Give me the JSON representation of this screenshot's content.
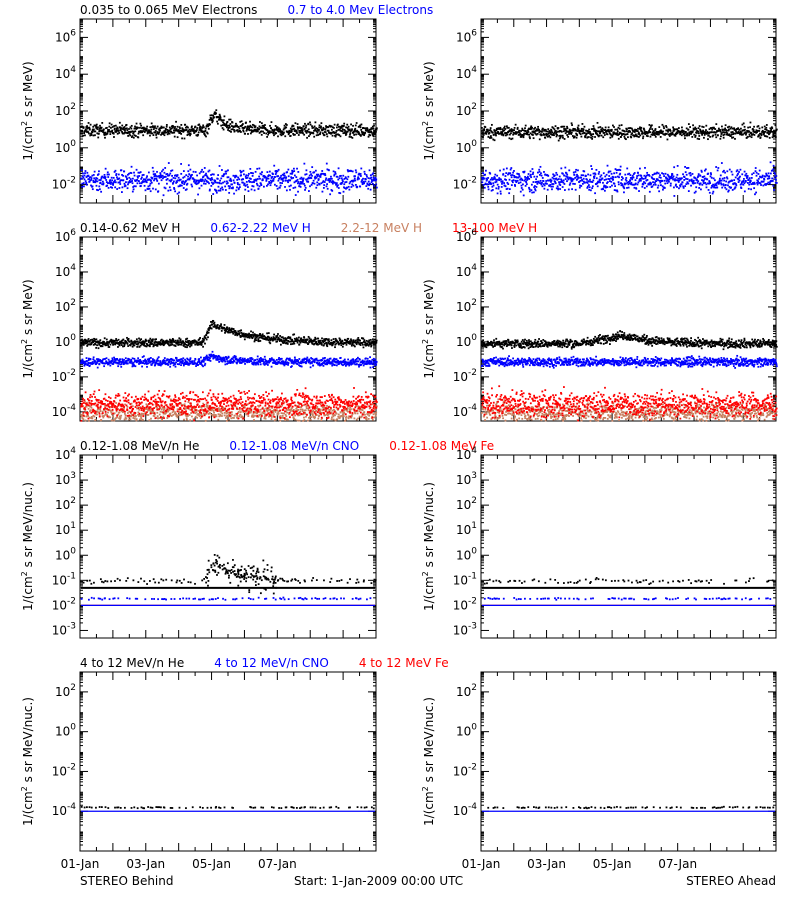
{
  "footer": {
    "left": "STEREO Behind",
    "center": "Start:  1-Jan-2009 00:00 UTC",
    "right": "STEREO Ahead"
  },
  "colors": {
    "black": "#000000",
    "blue": "#0000ff",
    "red": "#ff0000",
    "tan": "#c88060"
  },
  "chart_data": [
    {
      "type": "scatter",
      "panel": "electrons",
      "legend": [
        {
          "text": "0.035 to 0.065 MeV Electrons",
          "color": "#000000"
        },
        {
          "text": "0.7 to 4.0 Mev Electrons",
          "color": "#0000ff"
        }
      ],
      "ylabel": "1/(cm2 s sr MeV)",
      "yscale": "log",
      "ylim": [
        0.001,
        10000000
      ],
      "yticks": [
        {
          "exp": "-2"
        },
        {
          "exp": "0"
        },
        {
          "exp": "2"
        },
        {
          "exp": "4"
        },
        {
          "exp": "6"
        }
      ],
      "x_range_days": [
        0,
        9
      ],
      "x_ticks": [
        "01-Jan",
        "03-Jan",
        "05-Jan",
        "07-Jan"
      ],
      "behind": {
        "series": [
          {
            "color": "#000000",
            "base": 10,
            "spread": 0.5,
            "event": {
              "start": 3.8,
              "peak": 4.05,
              "decay": 0.35,
              "peak_value": 80
            }
          },
          {
            "color": "#0000ff",
            "base": 0.02,
            "spread": 0.9
          }
        ]
      },
      "ahead": {
        "series": [
          {
            "color": "#000000",
            "base": 8,
            "spread": 0.5
          },
          {
            "color": "#0000ff",
            "base": 0.02,
            "spread": 0.9
          }
        ]
      }
    },
    {
      "type": "scatter",
      "panel": "protons",
      "legend": [
        {
          "text": "0.14-0.62 MeV H",
          "color": "#000000"
        },
        {
          "text": "0.62-2.22 MeV H",
          "color": "#0000ff"
        },
        {
          "text": "2.2-12 MeV H",
          "color": "#c88060"
        },
        {
          "text": "13-100 MeV H",
          "color": "#ff0000"
        }
      ],
      "ylabel": "1/(cm2 s sr MeV)",
      "yscale": "log",
      "ylim": [
        3e-05,
        1000000
      ],
      "yticks": [
        {
          "exp": "-4"
        },
        {
          "exp": "-2"
        },
        {
          "exp": "0"
        },
        {
          "exp": "2"
        },
        {
          "exp": "4"
        },
        {
          "exp": "6"
        }
      ],
      "x_range_days": [
        0,
        9
      ],
      "x_ticks": [
        "01-Jan",
        "03-Jan",
        "05-Jan",
        "07-Jan"
      ],
      "behind": {
        "series": [
          {
            "color": "#000000",
            "base": 1,
            "spread": 0.35,
            "event": {
              "start": 3.7,
              "peak": 4.0,
              "decay": 1.2,
              "peak_value": 12
            }
          },
          {
            "color": "#0000ff",
            "base": 0.08,
            "spread": 0.35,
            "event": {
              "start": 3.7,
              "peak": 4.0,
              "decay": 0.6,
              "peak_value": 0.17
            }
          },
          {
            "color": "#c88060",
            "base": 0.0001,
            "spread": 0.8
          },
          {
            "color": "#ff0000",
            "base": 0.0003,
            "spread": 1.0
          }
        ]
      },
      "ahead": {
        "series": [
          {
            "color": "#000000",
            "base": 0.9,
            "spread": 0.35,
            "event": {
              "start": 3.0,
              "peak": 4.3,
              "decay": 0.8,
              "peak_value": 2.8
            }
          },
          {
            "color": "#0000ff",
            "base": 0.08,
            "spread": 0.35
          },
          {
            "color": "#c88060",
            "base": 0.0001,
            "spread": 0.8
          },
          {
            "color": "#ff0000",
            "base": 0.0003,
            "spread": 1.0
          }
        ]
      }
    },
    {
      "type": "scatter",
      "panel": "heavy-ions-low",
      "legend": [
        {
          "text": "0.12-1.08 MeV/n He",
          "color": "#000000"
        },
        {
          "text": "0.12-1.08 MeV/n CNO",
          "color": "#0000ff"
        },
        {
          "text": "0.12-1.08 MeV Fe",
          "color": "#ff0000"
        }
      ],
      "ylabel": "1/(cm2 s sr MeV/nuc.)",
      "yscale": "log",
      "ylim": [
        0.0005,
        10000
      ],
      "yticks": [
        {
          "exp": "-3"
        },
        {
          "exp": "-2"
        },
        {
          "exp": "-1"
        },
        {
          "exp": "0"
        },
        {
          "exp": "1"
        },
        {
          "exp": "2"
        },
        {
          "exp": "3"
        },
        {
          "exp": "4"
        }
      ],
      "x_range_days": [
        0,
        9
      ],
      "x_ticks": [
        "01-Jan",
        "03-Jan",
        "05-Jan",
        "07-Jan"
      ],
      "behind": {
        "lines": [
          {
            "color": "#000000",
            "value": 0.05
          },
          {
            "color": "#ff0000",
            "value": 0.01
          },
          {
            "color": "#0000ff",
            "value": 0.01
          }
        ],
        "series": [
          {
            "color": "#000000",
            "base": 0.1,
            "spread": 0.15,
            "sparse": true,
            "event": {
              "start": 3.8,
              "peak": 4.0,
              "decay": 0.8,
              "peak_value": 0.6
            }
          },
          {
            "color": "#0000ff",
            "base": 0.02,
            "spread": 0.05,
            "sparse": true
          }
        ]
      },
      "ahead": {
        "lines": [
          {
            "color": "#000000",
            "value": 0.05
          },
          {
            "color": "#ff0000",
            "value": 0.01
          },
          {
            "color": "#0000ff",
            "value": 0.01
          }
        ],
        "series": [
          {
            "color": "#000000",
            "base": 0.1,
            "spread": 0.15,
            "sparse": true
          },
          {
            "color": "#0000ff",
            "base": 0.02,
            "spread": 0.05,
            "sparse": true
          }
        ]
      }
    },
    {
      "type": "scatter",
      "panel": "heavy-ions-high",
      "legend": [
        {
          "text": "4 to 12 MeV/n He",
          "color": "#000000"
        },
        {
          "text": "4 to 12 MeV/n CNO",
          "color": "#0000ff"
        },
        {
          "text": "4 to 12 MeV Fe",
          "color": "#ff0000"
        }
      ],
      "ylabel": "1/(cm2 s sr MeV/nuc.)",
      "yscale": "log",
      "ylim": [
        1e-06,
        1000
      ],
      "yticks": [
        {
          "exp": "-4"
        },
        {
          "exp": "-2"
        },
        {
          "exp": "0"
        },
        {
          "exp": "2"
        }
      ],
      "x_range_days": [
        0,
        9
      ],
      "x_ticks": [
        "01-Jan",
        "03-Jan",
        "05-Jan",
        "07-Jan"
      ],
      "behind": {
        "lines": [
          {
            "color": "#0000ff",
            "value": 0.0001
          }
        ],
        "series": [
          {
            "color": "#000000",
            "base": 0.00017,
            "spread": 0.05,
            "sparse": true
          }
        ]
      },
      "ahead": {
        "lines": [
          {
            "color": "#0000ff",
            "value": 0.0001
          }
        ],
        "series": [
          {
            "color": "#000000",
            "base": 0.00017,
            "spread": 0.05,
            "sparse": true
          }
        ]
      }
    }
  ]
}
